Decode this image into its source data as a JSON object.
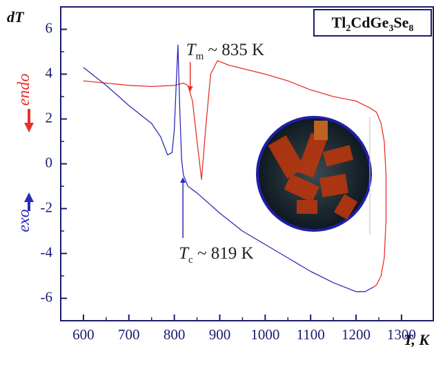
{
  "chart_data": {
    "type": "line",
    "y_label": "dT",
    "x_label": "T, K",
    "compound": "Tl2CdGe3Se8",
    "xlim": [
      550,
      1370
    ],
    "xticks": [
      600,
      700,
      800,
      900,
      1000,
      1100,
      1200,
      1300
    ],
    "ylim": [
      -7,
      7
    ],
    "yticks": [
      -6,
      -4,
      -2,
      0,
      2,
      4,
      6
    ],
    "series": [
      {
        "name": "endo",
        "color": "#e8302a",
        "x": [
          600,
          650,
          700,
          750,
          800,
          820,
          830,
          840,
          850,
          860,
          870,
          880,
          895,
          920,
          1000,
          1050,
          1100,
          1150,
          1200,
          1230,
          1245,
          1255,
          1262,
          1266,
          1266,
          1262,
          1255,
          1245,
          1238
        ],
        "values": [
          3.7,
          3.6,
          3.5,
          3.45,
          3.5,
          3.6,
          3.5,
          2.8,
          1.0,
          -0.7,
          1.8,
          4.0,
          4.6,
          4.4,
          4.0,
          3.7,
          3.3,
          3.0,
          2.8,
          2.5,
          2.3,
          1.8,
          1.0,
          -0.5,
          -2.5,
          -4.2,
          -5.0,
          -5.4,
          -5.5
        ]
      },
      {
        "name": "exo",
        "color": "#2a2ab8",
        "x": [
          600,
          650,
          700,
          750,
          770,
          785,
          795,
          800,
          804,
          808,
          812,
          816,
          820,
          830,
          850,
          900,
          950,
          1000,
          1050,
          1100,
          1150,
          1200,
          1220,
          1238
        ],
        "values": [
          4.3,
          3.5,
          2.6,
          1.8,
          1.2,
          0.4,
          0.5,
          1.5,
          3.5,
          5.3,
          2.5,
          0.2,
          -0.5,
          -1.0,
          -1.3,
          -2.2,
          -3.0,
          -3.6,
          -4.2,
          -4.8,
          -5.3,
          -5.7,
          -5.7,
          -5.5
        ]
      }
    ],
    "annotations": [
      {
        "symbol": "T",
        "sub": "m",
        "text": "~ 835 K",
        "value": 835,
        "color": "#e8302a"
      },
      {
        "symbol": "T",
        "sub": "c",
        "text": "~ 819 K",
        "value": 819,
        "color": "#2a2ab8"
      }
    ]
  }
}
